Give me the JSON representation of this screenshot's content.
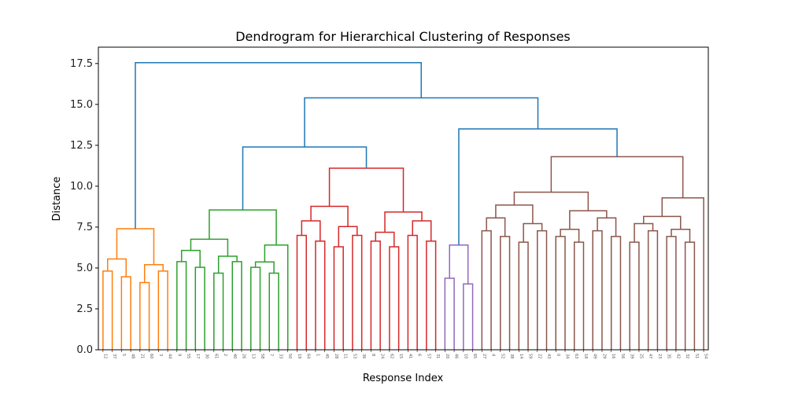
{
  "chart_data": {
    "type": "dendrogram",
    "title": "Dendrogram for Hierarchical Clustering of Responses",
    "xlabel": "Response Index",
    "ylabel": "Distance",
    "ylim": [
      0,
      18.5
    ],
    "yticks": [
      "0.0",
      "2.5",
      "5.0",
      "7.5",
      "10.0",
      "12.5",
      "15.0",
      "17.5"
    ],
    "grid": false,
    "link_colors": {
      "above_threshold": "#1f77b4",
      "cluster_1": "#ff7f0e",
      "cluster_2": "#2ca02c",
      "cluster_3": "#d62728",
      "cluster_4": "#9467bd",
      "cluster_5": "#8c564b"
    },
    "clusters": [
      {
        "color_key": "cluster_1",
        "leaf_count": 8,
        "merge_height": 7.4
      },
      {
        "color_key": "cluster_2",
        "leaf_count": 13,
        "merge_height": 8.55
      },
      {
        "color_key": "cluster_3",
        "leaf_count": 16,
        "merge_height": 11.1
      },
      {
        "color_key": "cluster_4",
        "leaf_count": 4,
        "merge_height": 6.4
      },
      {
        "color_key": "cluster_5",
        "leaf_count": 25,
        "merge_height": 11.8
      }
    ],
    "top_merges": [
      {
        "joins": "cluster_2 + cluster_3",
        "height": 12.4
      },
      {
        "joins": "cluster_4 + cluster_5",
        "height": 13.5
      },
      {
        "joins": "(cluster_2,cluster_3) + (cluster_4,cluster_5)",
        "height": 15.4
      },
      {
        "joins": "cluster_1 + rest",
        "height": 17.55
      }
    ],
    "leaf_labels": [
      "12",
      "37",
      "5",
      "48",
      "21",
      "60",
      "3",
      "44",
      "9",
      "55",
      "17",
      "30",
      "61",
      "2",
      "40",
      "26",
      "13",
      "58",
      "7",
      "33",
      "50",
      "19",
      "64",
      "1",
      "45",
      "28",
      "11",
      "53",
      "36",
      "8",
      "24",
      "62",
      "15",
      "41",
      "6",
      "57",
      "31",
      "20",
      "46",
      "10",
      "65",
      "27",
      "4",
      "52",
      "38",
      "14",
      "59",
      "22",
      "43",
      "0",
      "34",
      "63",
      "18",
      "49",
      "29",
      "16",
      "56",
      "39",
      "25",
      "47",
      "23",
      "35",
      "42",
      "32",
      "51",
      "54"
    ]
  }
}
